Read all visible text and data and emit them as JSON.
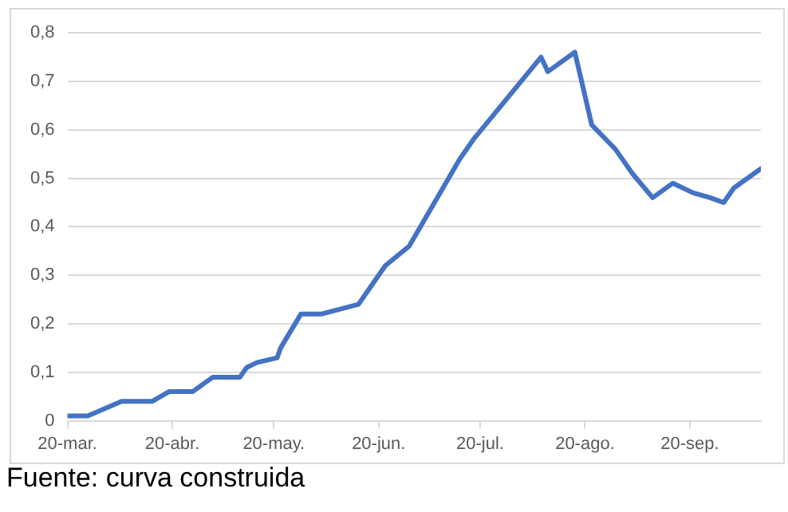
{
  "chart_data": {
    "type": "line",
    "x": [
      "--03-20",
      "--03-26",
      "--04-05",
      "--04-14",
      "--04-19",
      "--04-26",
      "--05-02",
      "--05-10",
      "--05-12",
      "--05-15",
      "--05-21",
      "--05-22",
      "--05-28",
      "--06-03",
      "--06-14",
      "--06-22",
      "--06-29",
      "--07-14",
      "--07-18",
      "--08-07",
      "--08-09",
      "--08-17",
      "--08-22",
      "--08-29",
      "--09-03",
      "--09-09",
      "--09-15",
      "--09-21",
      "--09-26",
      "--09-30",
      "--10-03",
      "--10-11"
    ],
    "series": [
      {
        "color": "#4472c4",
        "values": [
          0.01,
          0.01,
          0.04,
          0.04,
          0.06,
          0.06,
          0.09,
          0.09,
          0.11,
          0.12,
          0.13,
          0.15,
          0.22,
          0.22,
          0.24,
          0.32,
          0.36,
          0.54,
          0.58,
          0.75,
          0.72,
          0.76,
          0.61,
          0.56,
          0.51,
          0.46,
          0.49,
          0.47,
          0.46,
          0.45,
          0.48,
          0.52
        ]
      }
    ],
    "xlim": [
      "--03-20",
      "--10-11"
    ],
    "xticks": [
      {
        "value": "--03-20",
        "label": "20-mar."
      },
      {
        "value": "--04-20",
        "label": "20-abr."
      },
      {
        "value": "--05-20",
        "label": "20-may."
      },
      {
        "value": "--06-20",
        "label": "20-jun."
      },
      {
        "value": "--07-20",
        "label": "20-jul."
      },
      {
        "value": "--08-20",
        "label": "20-ago."
      },
      {
        "value": "--09-20",
        "label": "20-sep."
      }
    ],
    "ylim": [
      0,
      0.8
    ],
    "yticks": [
      0,
      {
        "value": 0.1,
        "label": "0,1"
      },
      {
        "value": 0.2,
        "label": "0,2"
      },
      {
        "value": 0.3,
        "label": "0,3"
      },
      {
        "value": 0.4,
        "label": "0,4"
      },
      {
        "value": 0.5,
        "label": "0,5"
      },
      {
        "value": 0.6,
        "label": "0,6"
      },
      {
        "value": 0.7,
        "label": "0,7"
      },
      {
        "value": 0.8,
        "label": "0,8"
      }
    ],
    "grid": "y",
    "legend": false,
    "marker": "none",
    "line_style": "solid",
    "annotations": [
      "Fuente: curva construida"
    ]
  }
}
